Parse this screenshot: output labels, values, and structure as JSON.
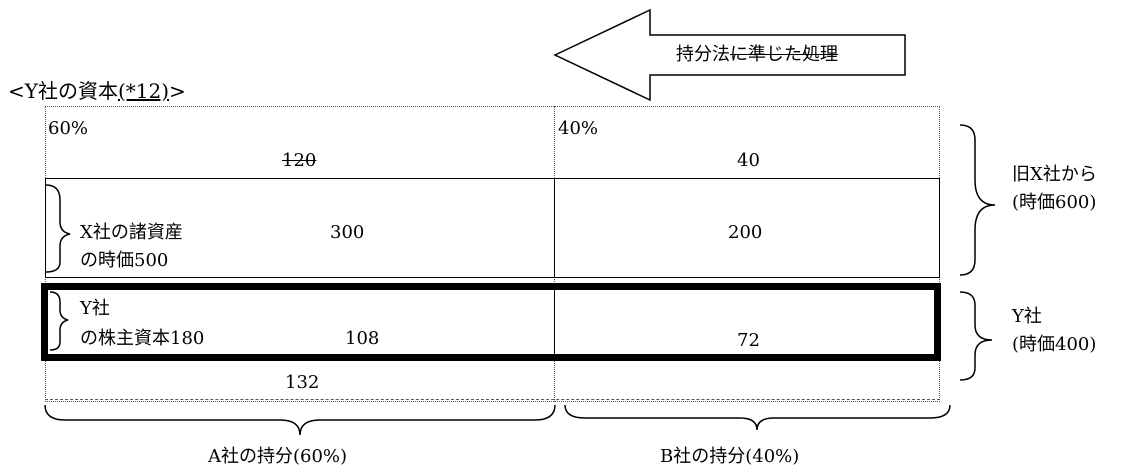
{
  "arrow": {
    "label_plain": "持分法",
    "label_struck": "に準じた処理"
  },
  "capital_title": {
    "prefix": "<Y社の資本",
    "note": "(*12)",
    "suffix": ">"
  },
  "top_row": {
    "left_pct": "60%",
    "right_pct": "40%",
    "left_value": "120",
    "right_value": "40"
  },
  "x_assets_row": {
    "label_line1": "X社の諸資産",
    "label_line2": "の時価500",
    "left_value": "300",
    "right_value": "200"
  },
  "y_equity_row": {
    "label_line1": "Y社",
    "label_line2": "の株主資本180",
    "left_value": "108",
    "right_value": "72"
  },
  "bottom_row": {
    "left_value": "132"
  },
  "right_labels": {
    "former_x_line1": "旧X社から",
    "former_x_line2": "(時価600)",
    "y_line1": "Y社",
    "y_line2": "(時価400)"
  },
  "bottom_labels": {
    "a_share": "A社の持分(60%)",
    "b_share": "B社の持分(40%)"
  }
}
